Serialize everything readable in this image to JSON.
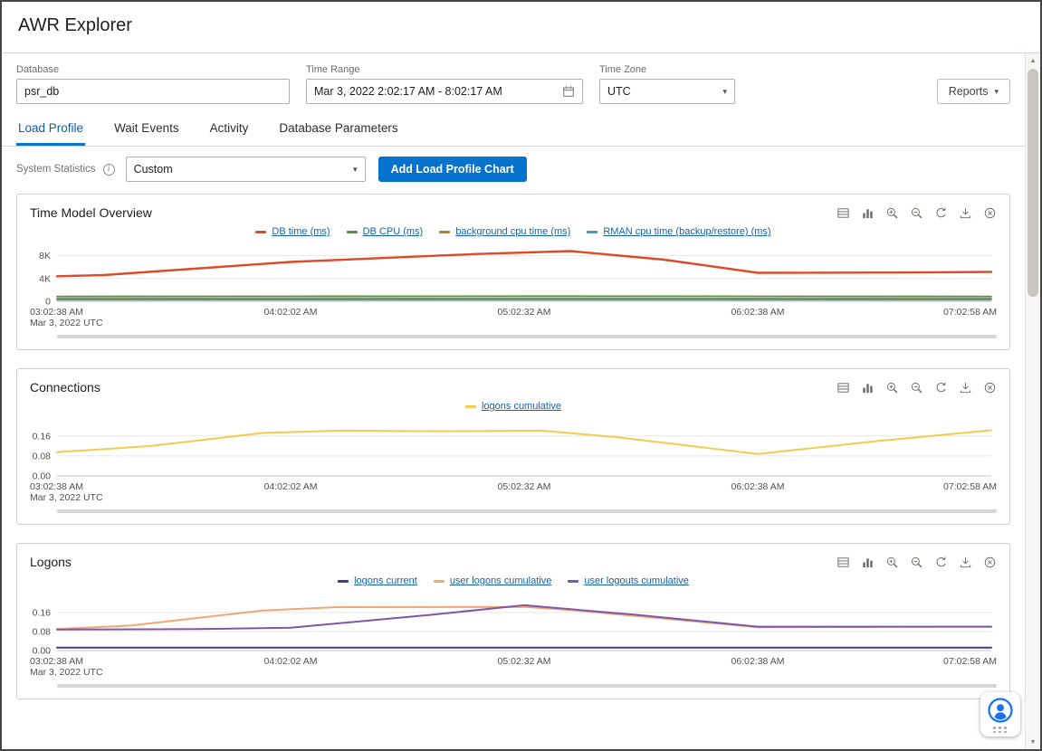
{
  "header": {
    "title": "AWR Explorer"
  },
  "filters": {
    "database": {
      "label": "Database",
      "value": "psr_db"
    },
    "time_range": {
      "label": "Time Range",
      "value": "Mar 3, 2022 2:02:17 AM - 8:02:17 AM"
    },
    "time_zone": {
      "label": "Time Zone",
      "value": "UTC"
    },
    "reports_button_label": "Reports"
  },
  "tabs": [
    {
      "label": "Load Profile",
      "active": true
    },
    {
      "label": "Wait Events",
      "active": false
    },
    {
      "label": "Activity",
      "active": false
    },
    {
      "label": "Database Parameters",
      "active": false
    }
  ],
  "controls": {
    "system_statistics_label": "System Statistics",
    "statistic_select_value": "Custom",
    "add_chart_button_label": "Add Load Profile Chart"
  },
  "chart_toolbar_icons": [
    "data-table-icon",
    "bar-chart-icon",
    "zoom-in-icon",
    "zoom-out-icon",
    "reset-zoom-icon",
    "download-icon",
    "remove-chart-icon"
  ],
  "colors": {
    "accent_blue": "#0572ce",
    "link_blue": "#1562af"
  },
  "chart_data": [
    {
      "type": "line",
      "title": "Time Model Overview",
      "x_tick_labels": [
        "03:02:38 AM",
        "04:02:02 AM",
        "05:02:32 AM",
        "06:02:38 AM",
        "07:02:58 AM"
      ],
      "x_sub_label": "Mar 3, 2022 UTC",
      "y_ticks": [
        {
          "value": 0,
          "label": "0"
        },
        {
          "value": 4000,
          "label": "4K"
        },
        {
          "value": 8000,
          "label": "8K"
        }
      ],
      "ylim": [
        0,
        9200
      ],
      "grid": true,
      "legend_position": "top",
      "series": [
        {
          "name": "DB time (ms)",
          "color": "#dc4a26",
          "width": 2.4,
          "points": [
            [
              0,
              4400
            ],
            [
              0.05,
              4600
            ],
            [
              0.25,
              6900
            ],
            [
              0.45,
              8300
            ],
            [
              0.55,
              8800
            ],
            [
              0.65,
              7300
            ],
            [
              0.75,
              5000
            ],
            [
              0.9,
              5050
            ],
            [
              1,
              5150
            ]
          ]
        },
        {
          "name": "DB CPU (ms)",
          "color": "#529440",
          "width": 1.8,
          "points": [
            [
              0,
              850
            ],
            [
              0.5,
              900
            ],
            [
              1,
              850
            ]
          ]
        },
        {
          "name": "background cpu time (ms)",
          "color": "#a8842c",
          "width": 1.8,
          "points": [
            [
              0,
              500
            ],
            [
              1,
              500
            ]
          ]
        },
        {
          "name": "RMAN cpu time (backup/restore) (ms)",
          "color": "#3d9db5",
          "width": 1.8,
          "points": [
            [
              0,
              250
            ],
            [
              1,
              250
            ]
          ]
        }
      ]
    },
    {
      "type": "line",
      "title": "Connections",
      "x_tick_labels": [
        "03:02:38 AM",
        "04:02:02 AM",
        "05:02:32 AM",
        "06:02:38 AM",
        "07:02:58 AM"
      ],
      "x_sub_label": "Mar 3, 2022 UTC",
      "y_ticks": [
        {
          "value": 0,
          "label": "0.00"
        },
        {
          "value": 0.08,
          "label": "0.08"
        },
        {
          "value": 0.16,
          "label": "0.16"
        }
      ],
      "ylim": [
        0,
        0.21
      ],
      "grid": true,
      "legend_position": "top",
      "series": [
        {
          "name": "logons cumulative",
          "color": "#f3cb4f",
          "width": 2,
          "points": [
            [
              0,
              0.095
            ],
            [
              0.1,
              0.12
            ],
            [
              0.22,
              0.172
            ],
            [
              0.3,
              0.181
            ],
            [
              0.42,
              0.179
            ],
            [
              0.52,
              0.181
            ],
            [
              0.6,
              0.155
            ],
            [
              0.75,
              0.088
            ],
            [
              0.88,
              0.14
            ],
            [
              1,
              0.183
            ]
          ]
        }
      ]
    },
    {
      "type": "line",
      "title": "Logons",
      "x_tick_labels": [
        "03:02:38 AM",
        "04:02:02 AM",
        "05:02:32 AM",
        "06:02:38 AM",
        "07:02:58 AM"
      ],
      "x_sub_label": "Mar 3, 2022 UTC",
      "y_ticks": [
        {
          "value": 0,
          "label": "0.00"
        },
        {
          "value": 0.08,
          "label": "0.08"
        },
        {
          "value": 0.16,
          "label": "0.16"
        }
      ],
      "ylim": [
        0,
        0.22
      ],
      "grid": true,
      "legend_position": "top",
      "series": [
        {
          "name": "logons current",
          "color": "#3a3d8f",
          "width": 2,
          "points": [
            [
              0,
              0.012
            ],
            [
              1,
              0.012
            ]
          ]
        },
        {
          "name": "user logons cumulative",
          "color": "#f2a672",
          "width": 2,
          "points": [
            [
              0,
              0.09
            ],
            [
              0.08,
              0.105
            ],
            [
              0.22,
              0.168
            ],
            [
              0.3,
              0.182
            ],
            [
              0.5,
              0.183
            ],
            [
              0.55,
              0.17
            ],
            [
              0.75,
              0.098
            ],
            [
              1,
              0.1
            ]
          ]
        },
        {
          "name": "user logouts cumulative",
          "color": "#7e57a5",
          "width": 2,
          "points": [
            [
              0,
              0.088
            ],
            [
              0.15,
              0.09
            ],
            [
              0.25,
              0.096
            ],
            [
              0.4,
              0.15
            ],
            [
              0.5,
              0.19
            ],
            [
              0.62,
              0.15
            ],
            [
              0.75,
              0.1
            ],
            [
              1,
              0.1
            ]
          ]
        }
      ]
    }
  ]
}
